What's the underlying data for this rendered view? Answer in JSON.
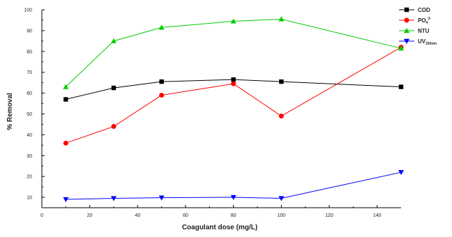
{
  "chart_data": {
    "type": "line",
    "xlabel": "Coagulant dose (mg/L)",
    "ylabel": "% Removal",
    "xlim": [
      0,
      150
    ],
    "ylim": [
      5,
      100
    ],
    "x_ticks": [
      0,
      20,
      40,
      60,
      80,
      100,
      120,
      140
    ],
    "y_ticks": [
      10,
      20,
      30,
      40,
      50,
      60,
      70,
      80,
      90,
      100
    ],
    "grid": false,
    "legend_position": "top-right",
    "x": [
      10,
      30,
      50,
      80,
      100,
      150
    ],
    "series": [
      {
        "name": "COD",
        "legend_sub": "",
        "legend_sup": "",
        "color": "#000000",
        "marker": "square",
        "values": [
          57,
          62.5,
          65.5,
          66.5,
          65.5,
          63
        ]
      },
      {
        "name": "PO",
        "legend_sub": "4",
        "legend_sup": "3-",
        "color": "#ff0000",
        "marker": "circle",
        "values": [
          36,
          44,
          59,
          64.5,
          49,
          82
        ]
      },
      {
        "name": "NTU",
        "legend_sub": "",
        "legend_sup": "",
        "color": "#00cc00",
        "marker": "triangle-up",
        "values": [
          63,
          85,
          91.5,
          94.5,
          95.5,
          81.5
        ]
      },
      {
        "name": "UV",
        "legend_sub": "254nm",
        "legend_sup": "",
        "color": "#0000ff",
        "marker": "triangle-down",
        "values": [
          9,
          9.5,
          9.8,
          10,
          9.5,
          22
        ]
      }
    ]
  }
}
